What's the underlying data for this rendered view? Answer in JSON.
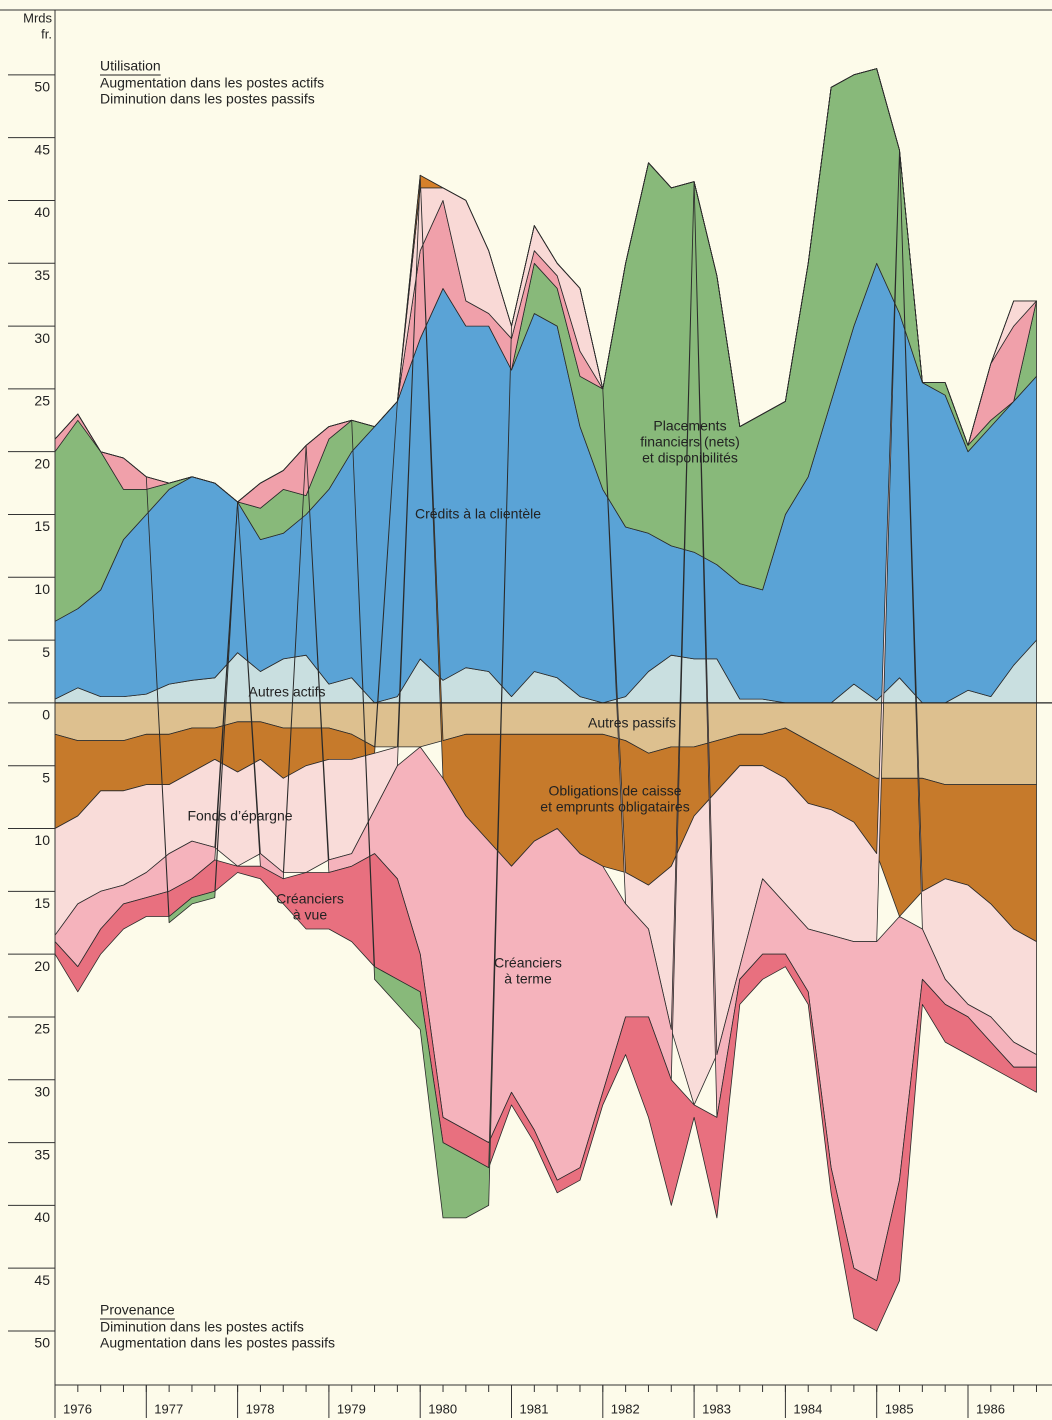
{
  "chart_data": {
    "type": "stacked-area",
    "y_label_lines": [
      "Mrds",
      "fr."
    ],
    "upper_note": {
      "title": "Utilisation",
      "lines": [
        "Augmentation dans les postes actifs",
        "Diminution dans les postes passifs"
      ]
    },
    "lower_note": {
      "title": "Provenance",
      "lines": [
        "Diminution dans les postes actifs",
        "Augmentation dans les postes passifs"
      ]
    },
    "x": [
      1976,
      1976.25,
      1976.5,
      1976.75,
      1977,
      1977.25,
      1977.5,
      1977.75,
      1978,
      1978.25,
      1978.5,
      1978.75,
      1979,
      1979.25,
      1979.5,
      1979.75,
      1980,
      1980.25,
      1980.5,
      1980.75,
      1981,
      1981.25,
      1981.5,
      1981.75,
      1982,
      1982.25,
      1982.5,
      1982.75,
      1983,
      1983.25,
      1983.5,
      1983.75,
      1984,
      1984.25,
      1984.5,
      1984.75,
      1985,
      1985.25,
      1985.5,
      1985.75,
      1986,
      1986.25,
      1986.5,
      1986.75
    ],
    "xlim": [
      1976,
      1986.92
    ],
    "xticks": [
      1976,
      1977,
      1978,
      1979,
      1980,
      1981,
      1982,
      1983,
      1984,
      1985,
      1986
    ],
    "ylim": [
      -54.3,
      55.4
    ],
    "yticks": [
      50,
      45,
      40,
      35,
      30,
      25,
      20,
      15,
      10,
      5,
      0,
      {
        "value": -5,
        "label": "5"
      },
      {
        "value": -10,
        "label": "10"
      },
      {
        "value": -15,
        "label": "15"
      },
      {
        "value": -20,
        "label": "20"
      },
      {
        "value": -25,
        "label": "25"
      },
      {
        "value": -30,
        "label": "30"
      },
      {
        "value": -35,
        "label": "35"
      },
      {
        "value": -40,
        "label": "40"
      },
      {
        "value": -45,
        "label": "45"
      },
      {
        "value": -50,
        "label": "50"
      }
    ],
    "series": [
      {
        "label_lines": [
          "Autres actifs"
        ],
        "color": "#c9dfe0",
        "values": [
          0.3,
          1.2,
          0.5,
          0.5,
          0.7,
          1.5,
          1.8,
          2,
          4,
          2.5,
          3.5,
          3.8,
          1.5,
          2,
          0,
          0.5,
          3.5,
          1.8,
          2.8,
          2.5,
          0.5,
          2.5,
          2,
          0.5,
          0,
          0.5,
          2.5,
          3.8,
          3.5,
          3.5,
          0.3,
          0.3,
          0,
          0,
          0,
          1.5,
          0.2,
          2,
          0,
          0,
          1,
          0.5,
          3,
          5
        ]
      },
      {
        "label_lines": [
          "Crédits à la clientèle"
        ],
        "color": "#5aa3d6",
        "values": [
          6.2,
          6.3,
          8.5,
          12.5,
          14.3,
          15.5,
          16.2,
          15.5,
          12,
          10.5,
          10,
          11.2,
          15.5,
          18,
          22,
          23.5,
          25.5,
          31.2,
          27.2,
          27.5,
          26,
          28.5,
          28,
          21.5,
          17,
          13.5,
          11,
          8.7,
          8.5,
          7.5,
          9.2,
          8.7,
          15,
          18,
          24,
          28.5,
          34.8,
          29,
          25.5,
          24.5,
          19,
          21.5,
          21,
          21
        ]
      },
      {
        "label_lines": [
          "Placements",
          "financiers (nets)",
          "et disponibilités"
        ],
        "color": "#88b97a",
        "values": [
          13.5,
          15,
          11,
          4,
          2,
          0.5,
          0,
          0,
          0,
          2.5,
          3.5,
          1.5,
          4,
          2.5,
          0,
          0,
          0,
          0,
          0,
          0,
          0,
          4,
          3,
          4,
          8,
          21,
          29.5,
          28.5,
          29.5,
          23,
          12.5,
          14,
          9,
          17,
          25,
          20,
          15.5,
          13,
          0,
          1,
          0.5,
          0.5,
          0,
          6
        ]
      },
      {
        "color": "#f0a0aa",
        "values": [
          1,
          0.5,
          0,
          2.5,
          1,
          0,
          0,
          0,
          0,
          2,
          1.5,
          4,
          1,
          0,
          0,
          0,
          7,
          7,
          2,
          1,
          2.5,
          1,
          1,
          2,
          0,
          0,
          0,
          0,
          0,
          0,
          0,
          0,
          0,
          0,
          0,
          0,
          0,
          0,
          0,
          0,
          0,
          4.5,
          6,
          0
        ]
      },
      {
        "color": "#f9d9d6",
        "values": [
          0,
          0,
          0,
          0,
          0,
          0,
          0,
          0,
          0,
          0,
          0,
          0,
          0,
          0,
          0,
          0,
          5,
          1,
          8,
          5,
          1,
          2,
          1,
          5,
          0,
          0,
          0,
          0,
          0,
          0,
          0,
          0,
          0,
          0,
          0,
          0,
          0,
          0,
          0,
          0,
          0,
          0,
          2,
          0
        ]
      },
      {
        "color": "#d6802a",
        "values": [
          0,
          0,
          0,
          0,
          0,
          0,
          0,
          0,
          0,
          0,
          0,
          0,
          0,
          0,
          0,
          0,
          1,
          0,
          0,
          0,
          0,
          0,
          0,
          0,
          0,
          0,
          0,
          0,
          0,
          0,
          0,
          0,
          0,
          0,
          0,
          0,
          0,
          0,
          0,
          0,
          0,
          0,
          0,
          0
        ]
      },
      {
        "label_lines": [
          "Autres passifs"
        ],
        "color": "#ddc08f",
        "values": [
          -2.5,
          -3,
          -3,
          -3,
          -2.5,
          -2.5,
          -2,
          -2,
          -1.5,
          -1.5,
          -2,
          -2,
          -2,
          -2.5,
          -3.5,
          -3.5,
          -3.5,
          -3,
          -2.5,
          -2.5,
          -2.5,
          -2.5,
          -2.5,
          -2.5,
          -2.5,
          -3,
          -4,
          -3.5,
          -3.5,
          -3,
          -2.5,
          -2.5,
          -2,
          -3,
          -4,
          -5,
          -6,
          -6,
          -6,
          -6.5,
          -6.5,
          -6.5,
          -6.5,
          -6.5
        ]
      },
      {
        "label_lines": [
          "Obligations de caisse",
          "et emprunts obligataires"
        ],
        "color": "#c67a2b",
        "values": [
          -7.5,
          -6,
          -4,
          -4,
          -4,
          -4,
          -3.5,
          -2.5,
          -4,
          -3,
          -4,
          -3,
          -2.5,
          -2,
          -0.5,
          0,
          0,
          -3,
          -6.5,
          -8.5,
          -10.5,
          -8.5,
          -7.5,
          -9.5,
          -10.5,
          -10.5,
          -10.5,
          -9.5,
          -5.5,
          -4,
          -2.5,
          -2.5,
          -4,
          -5,
          -4.5,
          -4.5,
          -6,
          -11,
          -9,
          -7.5,
          -8,
          -9.5,
          -11.5,
          -12.5
        ]
      },
      {
        "label_lines": [
          "Fonds d’épargne"
        ],
        "color": "#f9dcd9",
        "values": [
          -8.5,
          -7,
          -8,
          -7.5,
          -7,
          -5.5,
          -5.5,
          -7,
          -7.5,
          -7.5,
          -7.5,
          -8.5,
          -8,
          -7.5,
          -4.5,
          -1.5,
          0,
          0,
          0,
          0,
          0,
          0,
          0,
          0,
          0,
          -2.5,
          -3.5,
          -13,
          -23,
          -21,
          -16,
          -9,
          -10,
          -10,
          -10,
          -9.5,
          -7,
          0,
          -3,
          -8,
          -9.5,
          -9,
          -9,
          -9
        ]
      },
      {
        "label_lines": [
          "Créanciers",
          "à terme"
        ],
        "color": "#f5b3bc",
        "values": [
          -0.5,
          -5,
          -3,
          -1.5,
          -2,
          -3,
          -3,
          -1,
          0,
          -1,
          -0.5,
          0,
          -1,
          -1,
          -3.5,
          -9,
          -16.5,
          -27,
          -25,
          -24,
          -18,
          -23,
          -28,
          -25,
          -18,
          -9,
          -7,
          -4,
          0,
          -5,
          -1,
          -6,
          -4,
          -5,
          -18.5,
          -26,
          -27,
          -21,
          -4,
          -2,
          -1,
          -2,
          -2,
          -1
        ]
      },
      {
        "label_lines": [
          "Créanciers",
          "à vue"
        ],
        "color": "#e8707f",
        "values": [
          -1,
          -2,
          -2,
          -2,
          -1.5,
          -2,
          -1.5,
          -2.5,
          -0.5,
          -1,
          -2,
          -4.5,
          -4.5,
          -6,
          -9,
          -8,
          -3,
          -2,
          -2,
          -2,
          -1,
          -1,
          -1,
          -1,
          -1,
          -3,
          -8,
          -10,
          -1,
          -8,
          -2,
          -2,
          -1,
          -1,
          -2,
          -4,
          -4,
          -8,
          -2,
          -3,
          -3,
          -2,
          -1,
          -2
        ]
      },
      {
        "color": "#88b97a",
        "values": [
          0,
          0,
          0,
          0,
          0,
          -0.5,
          -0.5,
          -0.5,
          0,
          0,
          0,
          0,
          0,
          0,
          -1,
          -2,
          -3,
          -6,
          -5,
          -3,
          0,
          0,
          0,
          0,
          0,
          0,
          0,
          0,
          0,
          0,
          0,
          0,
          0,
          0,
          0,
          0,
          0,
          0,
          0,
          0,
          0,
          0,
          0,
          0
        ]
      }
    ]
  }
}
